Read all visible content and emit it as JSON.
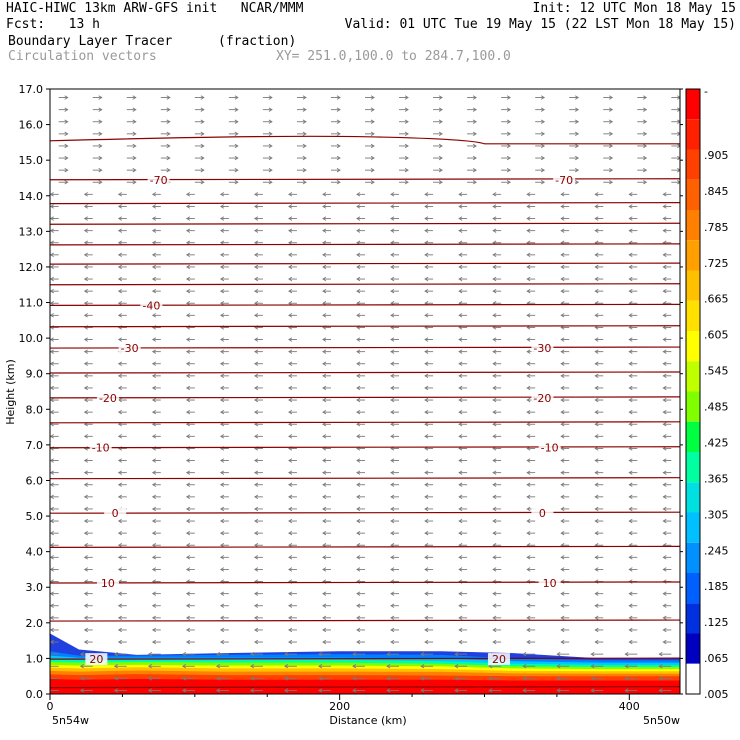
{
  "header": {
    "line1_left": "HAIC-HIWC 13km ARW-GFS init   NCAR/MMM",
    "line1_right": "Init: 12 UTC Mon 18 May 15",
    "line2_left": "Fcst:   13 h",
    "line2_right": "Valid: 01 UTC Tue 19 May 15 (22 LST Mon 18 May 15)",
    "line3_left": "Boundary Layer Tracer",
    "line3_units": "(fraction)",
    "line4_left": "Circulation vectors",
    "line4_right": "XY= 251.0,100.0 to 284.7,100.0"
  },
  "chart_data": {
    "type": "heatmap",
    "xlabel": "Distance (km)",
    "ylabel": "Height (km)",
    "xlim": [
      0,
      435
    ],
    "ylim": [
      0,
      17
    ],
    "x_ticks": [
      0,
      200,
      400
    ],
    "x_tick_labels": [
      "0",
      "200",
      "400"
    ],
    "y_ticks": [
      0,
      1,
      2,
      3,
      4,
      5,
      6,
      7,
      8,
      9,
      10,
      11,
      12,
      13,
      14,
      15,
      16,
      17
    ],
    "y_tick_labels": [
      "0.0",
      "1.0",
      "2.0",
      "3.0",
      "4.0",
      "5.0",
      "6.0",
      "7.0",
      "8.0",
      "9.0",
      "10.0",
      "11.0",
      "12.0",
      "13.0",
      "14.0",
      "15.0",
      "16.0",
      "17.0"
    ],
    "endpoint_labels": {
      "left": "5n54w",
      "right": "5n50w"
    },
    "colorbar": {
      "labels": [
        "-",
        ".905",
        ".845",
        ".785",
        ".725",
        ".665",
        ".605",
        ".545",
        ".485",
        ".425",
        ".365",
        ".305",
        ".245",
        ".185",
        ".125",
        ".065",
        ".005"
      ],
      "colors": [
        "#ff0000",
        "#ff2000",
        "#ff4000",
        "#ff6000",
        "#ff8000",
        "#ffa000",
        "#ffc000",
        "#ffe000",
        "#ffff00",
        "#c0ff00",
        "#80ff00",
        "#00ff40",
        "#00ffa0",
        "#00e0e0",
        "#00c0ff",
        "#0090ff",
        "#0060ff",
        "#0030e0",
        "#0000c0",
        "#ffffff"
      ]
    },
    "temperature_contours": {
      "levels": [
        {
          "h": 0.18,
          "label": "",
          "lx": []
        },
        {
          "h": 0.98,
          "label": "20",
          "lx": [
            32,
            310
          ]
        },
        {
          "h": 2.05,
          "label": "",
          "lx": []
        },
        {
          "h": 3.12,
          "label": "10",
          "lx": [
            40,
            345
          ]
        },
        {
          "h": 4.12,
          "label": "",
          "lx": []
        },
        {
          "h": 5.08,
          "label": "0",
          "lx": [
            45,
            340
          ]
        },
        {
          "h": 6.05,
          "label": "",
          "lx": []
        },
        {
          "h": 6.92,
          "label": "-10",
          "lx": [
            35,
            345
          ]
        },
        {
          "h": 7.62,
          "label": "",
          "lx": []
        },
        {
          "h": 8.32,
          "label": "-20",
          "lx": [
            40,
            340
          ]
        },
        {
          "h": 9.02,
          "label": "",
          "lx": []
        },
        {
          "h": 9.72,
          "label": "-30",
          "lx": [
            55,
            340
          ]
        },
        {
          "h": 10.32,
          "label": "",
          "lx": []
        },
        {
          "h": 10.92,
          "label": "-40",
          "lx": [
            70
          ]
        },
        {
          "h": 11.5,
          "label": "",
          "lx": []
        },
        {
          "h": 12.08,
          "label": "",
          "lx": []
        },
        {
          "h": 12.62,
          "label": "",
          "lx": []
        },
        {
          "h": 13.2,
          "label": "",
          "lx": []
        },
        {
          "h": 13.78,
          "label": "",
          "lx": []
        },
        {
          "h": 14.45,
          "label": "-70",
          "lx": [
            75,
            355
          ]
        },
        {
          "h": 15.6,
          "label": "",
          "lx": []
        }
      ]
    }
  }
}
